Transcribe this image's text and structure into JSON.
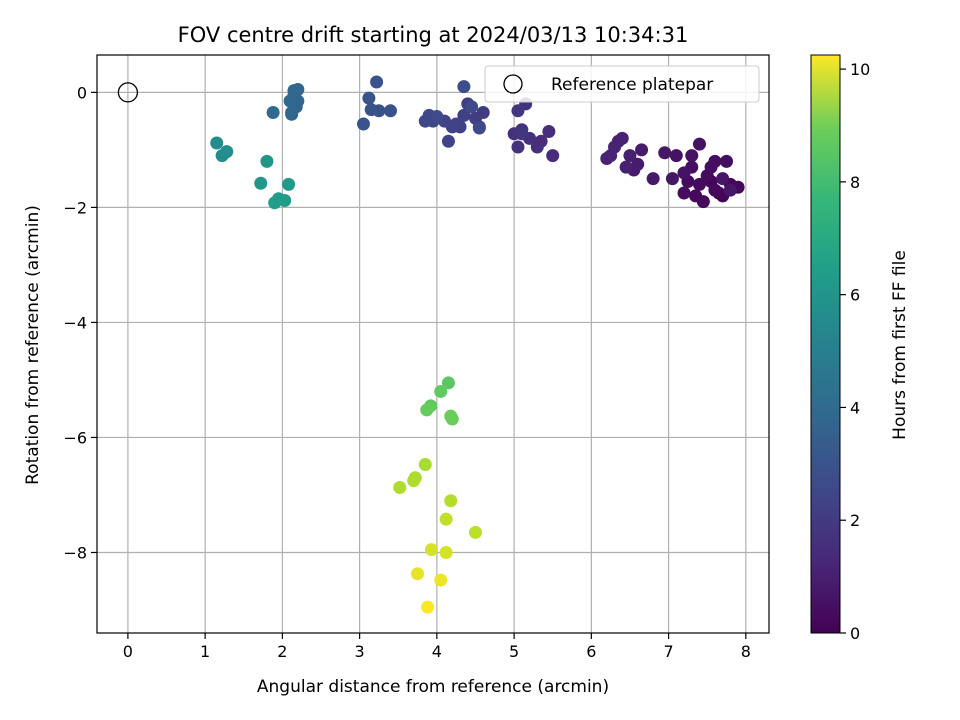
{
  "chart_data": {
    "type": "scatter",
    "title": "FOV centre drift starting at 2024/03/13 10:34:31",
    "xlabel": "Angular distance from reference (arcmin)",
    "ylabel": "Rotation from reference (arcmin)",
    "xlim": [
      -0.4,
      8.3
    ],
    "ylim": [
      -9.4,
      0.65
    ],
    "x_ticks": [
      0,
      1,
      2,
      3,
      4,
      5,
      6,
      7,
      8
    ],
    "y_ticks": [
      0,
      -2,
      -4,
      -6,
      -8
    ],
    "grid": true,
    "legend": {
      "position": "top-right",
      "entries": [
        "Reference platepar"
      ]
    },
    "reference": {
      "x": 0,
      "y": 0,
      "label": "Reference platepar"
    },
    "colorbar": {
      "label": "Hours from first FF file",
      "range": [
        0,
        10.25
      ],
      "ticks": [
        0,
        2,
        4,
        6,
        8,
        10
      ],
      "colormap": "viridis"
    },
    "points": [
      {
        "x": 7.55,
        "y": -1.55,
        "t": 0.1
      },
      {
        "x": 7.65,
        "y": -1.75,
        "t": 0.1
      },
      {
        "x": 7.8,
        "y": -1.6,
        "t": 0.1
      },
      {
        "x": 7.7,
        "y": -1.8,
        "t": 0.1
      },
      {
        "x": 7.9,
        "y": -1.65,
        "t": 0.2
      },
      {
        "x": 7.6,
        "y": -1.7,
        "t": 0.2
      },
      {
        "x": 7.45,
        "y": -1.9,
        "t": 0.2
      },
      {
        "x": 7.35,
        "y": -1.8,
        "t": 0.2
      },
      {
        "x": 7.2,
        "y": -1.75,
        "t": 0.3
      },
      {
        "x": 7.25,
        "y": -1.55,
        "t": 0.3
      },
      {
        "x": 7.4,
        "y": -1.6,
        "t": 0.3
      },
      {
        "x": 7.5,
        "y": -1.45,
        "t": 0.3
      },
      {
        "x": 7.55,
        "y": -1.3,
        "t": 0.4
      },
      {
        "x": 7.6,
        "y": -1.2,
        "t": 0.4
      },
      {
        "x": 7.75,
        "y": -1.2,
        "t": 0.4
      },
      {
        "x": 7.3,
        "y": -1.3,
        "t": 0.4
      },
      {
        "x": 7.4,
        "y": -0.9,
        "t": 0.5
      },
      {
        "x": 7.3,
        "y": -1.1,
        "t": 0.5
      },
      {
        "x": 7.1,
        "y": -1.1,
        "t": 0.5
      },
      {
        "x": 7.2,
        "y": -1.4,
        "t": 0.5
      },
      {
        "x": 7.05,
        "y": -1.5,
        "t": 0.6
      },
      {
        "x": 6.95,
        "y": -1.05,
        "t": 0.6
      },
      {
        "x": 7.7,
        "y": -1.5,
        "t": 0.6
      },
      {
        "x": 7.8,
        "y": -1.7,
        "t": 0.6
      },
      {
        "x": 6.8,
        "y": -1.5,
        "t": 0.7
      },
      {
        "x": 6.65,
        "y": -1.0,
        "t": 0.8
      },
      {
        "x": 6.6,
        "y": -1.25,
        "t": 0.8
      },
      {
        "x": 6.55,
        "y": -1.35,
        "t": 0.8
      },
      {
        "x": 6.5,
        "y": -1.1,
        "t": 0.9
      },
      {
        "x": 6.45,
        "y": -1.3,
        "t": 0.9
      },
      {
        "x": 6.35,
        "y": -0.85,
        "t": 0.9
      },
      {
        "x": 6.3,
        "y": -0.95,
        "t": 1.0
      },
      {
        "x": 6.25,
        "y": -1.1,
        "t": 1.0
      },
      {
        "x": 6.2,
        "y": -1.15,
        "t": 1.0
      },
      {
        "x": 6.4,
        "y": -0.8,
        "t": 1.0
      },
      {
        "x": 5.45,
        "y": -0.68,
        "t": 1.3
      },
      {
        "x": 5.5,
        "y": -1.1,
        "t": 1.3
      },
      {
        "x": 5.35,
        "y": -0.85,
        "t": 1.3
      },
      {
        "x": 5.3,
        "y": -0.95,
        "t": 1.4
      },
      {
        "x": 5.2,
        "y": -0.8,
        "t": 1.4
      },
      {
        "x": 5.1,
        "y": -0.65,
        "t": 1.4
      },
      {
        "x": 5.0,
        "y": -0.72,
        "t": 1.5
      },
      {
        "x": 5.05,
        "y": -0.95,
        "t": 1.5
      },
      {
        "x": 5.15,
        "y": -0.2,
        "t": 1.5
      },
      {
        "x": 5.05,
        "y": -0.32,
        "t": 1.6
      },
      {
        "x": 5.1,
        "y": -0.72,
        "t": 1.6
      },
      {
        "x": 4.6,
        "y": -0.35,
        "t": 1.8
      },
      {
        "x": 4.55,
        "y": -0.6,
        "t": 1.8
      },
      {
        "x": 4.5,
        "y": -0.45,
        "t": 1.9
      },
      {
        "x": 4.4,
        "y": -0.2,
        "t": 1.9
      },
      {
        "x": 4.35,
        "y": -0.4,
        "t": 2.0
      },
      {
        "x": 4.3,
        "y": -0.6,
        "t": 2.0
      },
      {
        "x": 4.25,
        "y": -0.55,
        "t": 2.0
      },
      {
        "x": 4.2,
        "y": -0.6,
        "t": 2.1
      },
      {
        "x": 4.15,
        "y": -0.85,
        "t": 2.1
      },
      {
        "x": 4.1,
        "y": -0.5,
        "t": 2.1
      },
      {
        "x": 3.95,
        "y": -0.5,
        "t": 2.2
      },
      {
        "x": 3.9,
        "y": -0.4,
        "t": 2.2
      },
      {
        "x": 3.85,
        "y": -0.5,
        "t": 2.2
      },
      {
        "x": 4.0,
        "y": -0.42,
        "t": 2.3
      },
      {
        "x": 4.45,
        "y": -0.25,
        "t": 2.3
      },
      {
        "x": 4.55,
        "y": -0.62,
        "t": 2.3
      },
      {
        "x": 4.35,
        "y": 0.1,
        "t": 2.4
      },
      {
        "x": 3.4,
        "y": -0.32,
        "t": 2.6
      },
      {
        "x": 3.25,
        "y": -0.32,
        "t": 2.6
      },
      {
        "x": 3.15,
        "y": -0.3,
        "t": 2.6
      },
      {
        "x": 3.12,
        "y": -0.1,
        "t": 2.7
      },
      {
        "x": 3.05,
        "y": -0.55,
        "t": 2.7
      },
      {
        "x": 3.22,
        "y": 0.18,
        "t": 2.7
      },
      {
        "x": 2.2,
        "y": 0.05,
        "t": 3.2
      },
      {
        "x": 2.15,
        "y": -0.05,
        "t": 3.2
      },
      {
        "x": 2.2,
        "y": -0.15,
        "t": 3.3
      },
      {
        "x": 2.18,
        "y": -0.25,
        "t": 3.3
      },
      {
        "x": 2.12,
        "y": -0.38,
        "t": 3.3
      },
      {
        "x": 2.1,
        "y": -0.15,
        "t": 3.4
      },
      {
        "x": 2.15,
        "y": 0.03,
        "t": 3.4
      },
      {
        "x": 2.12,
        "y": -0.35,
        "t": 3.4
      },
      {
        "x": 1.88,
        "y": -0.35,
        "t": 3.5
      },
      {
        "x": 1.15,
        "y": -0.88,
        "t": 5.0
      },
      {
        "x": 1.22,
        "y": -1.1,
        "t": 5.0
      },
      {
        "x": 1.28,
        "y": -1.03,
        "t": 5.1
      },
      {
        "x": 1.8,
        "y": -1.2,
        "t": 5.4
      },
      {
        "x": 1.72,
        "y": -1.58,
        "t": 5.4
      },
      {
        "x": 2.08,
        "y": -1.6,
        "t": 5.5
      },
      {
        "x": 1.95,
        "y": -1.85,
        "t": 5.6
      },
      {
        "x": 2.03,
        "y": -1.88,
        "t": 5.6
      },
      {
        "x": 1.9,
        "y": -1.92,
        "t": 5.7
      },
      {
        "x": 4.15,
        "y": -5.05,
        "t": 7.6
      },
      {
        "x": 4.05,
        "y": -5.2,
        "t": 7.7
      },
      {
        "x": 3.92,
        "y": -5.45,
        "t": 7.7
      },
      {
        "x": 3.87,
        "y": -5.52,
        "t": 7.8
      },
      {
        "x": 4.18,
        "y": -5.63,
        "t": 7.9
      },
      {
        "x": 4.2,
        "y": -5.68,
        "t": 7.9
      },
      {
        "x": 3.85,
        "y": -6.47,
        "t": 8.9
      },
      {
        "x": 3.72,
        "y": -6.7,
        "t": 8.9
      },
      {
        "x": 3.7,
        "y": -6.75,
        "t": 9.0
      },
      {
        "x": 3.52,
        "y": -6.87,
        "t": 9.0
      },
      {
        "x": 4.18,
        "y": -7.1,
        "t": 9.1
      },
      {
        "x": 4.5,
        "y": -7.65,
        "t": 9.2
      },
      {
        "x": 4.12,
        "y": -7.42,
        "t": 9.3
      },
      {
        "x": 3.93,
        "y": -7.95,
        "t": 9.6
      },
      {
        "x": 4.12,
        "y": -8.0,
        "t": 9.6
      },
      {
        "x": 3.75,
        "y": -8.37,
        "t": 9.9
      },
      {
        "x": 4.05,
        "y": -8.48,
        "t": 10.0
      },
      {
        "x": 3.88,
        "y": -8.95,
        "t": 10.2
      }
    ]
  }
}
